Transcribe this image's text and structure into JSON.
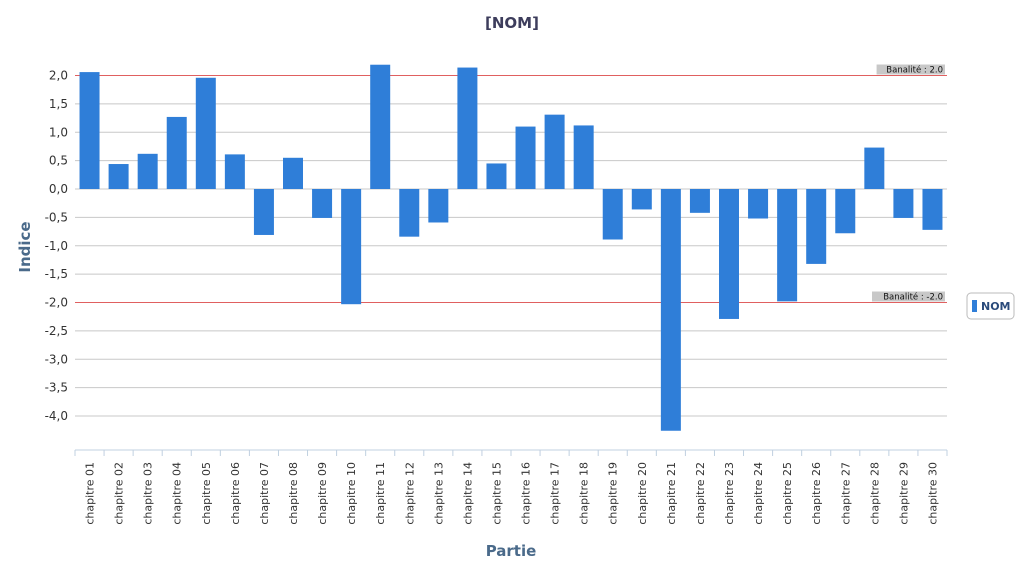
{
  "chart_data": {
    "type": "bar",
    "title": "[NOM]",
    "xlabel": "Partie",
    "ylabel": "Indice",
    "categories": [
      "chapitre 01",
      "chapitre 02",
      "chapitre 03",
      "chapitre 04",
      "chapitre 05",
      "chapitre  06",
      "chapitre 07",
      "chapitre 08",
      "chapitre 09",
      "chapitre 10",
      "chapitre 11",
      "chapitre 12",
      "chapitre 13",
      "chapitre 14",
      "chapitre 15",
      "chapitre 16",
      "chapitre 17",
      "chapitre 18",
      "chapitre 19",
      "chapitre 20",
      "chapitre 21",
      "chapitre 22",
      "chapitre 23",
      "chapitre 24",
      "chapitre 25",
      "chapitre 26",
      "chapitre 27",
      "chapitre 28",
      "chapitre 29",
      "chapitre 30"
    ],
    "series": [
      {
        "name": "NOM",
        "color": "#2f7ed8",
        "values": [
          2.06,
          0.44,
          0.62,
          1.27,
          1.96,
          0.61,
          -0.81,
          0.55,
          -0.51,
          -2.03,
          2.19,
          -0.84,
          -0.59,
          2.14,
          0.45,
          1.1,
          1.31,
          1.12,
          -0.89,
          -0.36,
          -4.26,
          -0.42,
          -2.29,
          -0.52,
          -1.98,
          -1.32,
          -0.78,
          0.73,
          -0.51,
          -0.72
        ]
      }
    ],
    "ylim": [
      -4.5,
      2.3
    ],
    "yticks": [
      "2,0",
      "1,5",
      "1,0",
      "0,5",
      "0,0",
      "-0,5",
      "-1,0",
      "-1,5",
      "-2,0",
      "-2,5",
      "-3,0",
      "-3,5",
      "-4,0"
    ],
    "ytick_values": [
      2.0,
      1.5,
      1.0,
      0.5,
      0.0,
      -0.5,
      -1.0,
      -1.5,
      -2.0,
      -2.5,
      -3.0,
      -3.5,
      -4.0
    ],
    "reference_lines": [
      {
        "value": 2.0,
        "label": "Banalité : 2.0",
        "color": "#e06060"
      },
      {
        "value": -2.0,
        "label": "Banalité : -2.0",
        "color": "#e06060"
      }
    ],
    "grid": true,
    "legend": "right"
  }
}
